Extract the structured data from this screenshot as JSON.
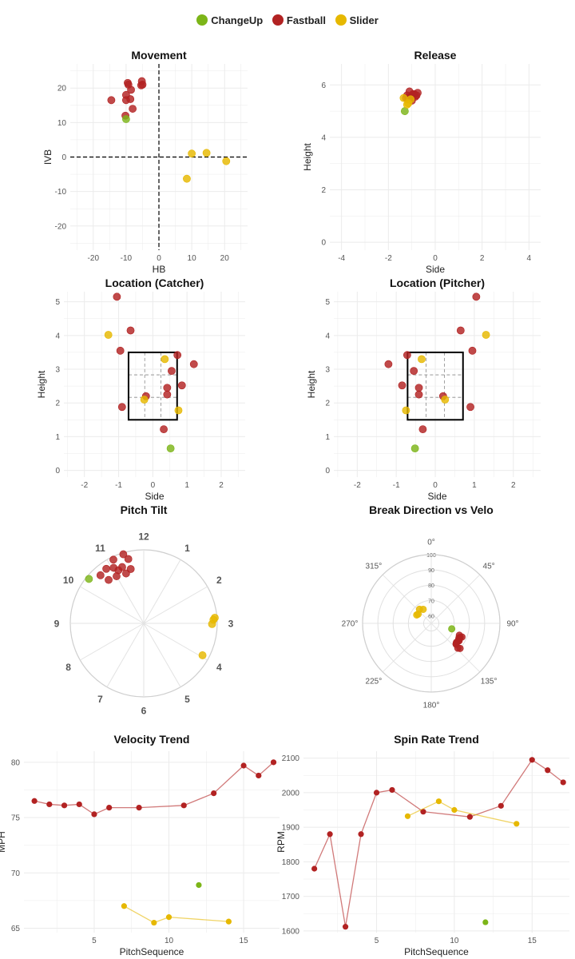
{
  "legend": {
    "items": [
      {
        "label": "ChangeUp",
        "color": "#7cb518"
      },
      {
        "label": "Fastball",
        "color": "#b22222"
      },
      {
        "label": "Slider",
        "color": "#e6b800"
      }
    ]
  },
  "chart_data": [
    {
      "type": "scatter",
      "title": "Movement",
      "xlabel": "HB",
      "ylabel": "IVB",
      "xlim": [
        -27,
        27
      ],
      "ylim": [
        -27,
        27
      ],
      "xticks": [
        -20,
        -10,
        0,
        10,
        20
      ],
      "yticks": [
        -20,
        -10,
        0,
        10,
        20
      ],
      "series": [
        {
          "name": "Fastball",
          "color": "#b22222",
          "points": [
            [
              -9.5,
              21.5
            ],
            [
              -9.3,
              21
            ],
            [
              -5.2,
              22
            ],
            [
              -5,
              21
            ],
            [
              -5.4,
              20.8
            ],
            [
              -8.5,
              19.5
            ],
            [
              -10,
              18
            ],
            [
              -10,
              16.5
            ],
            [
              -8.7,
              16.8
            ],
            [
              -14.5,
              16.5
            ],
            [
              -8,
              14
            ],
            [
              -10.2,
              12
            ]
          ]
        },
        {
          "name": "ChangeUp",
          "color": "#7cb518",
          "points": [
            [
              -10,
              11
            ]
          ]
        },
        {
          "name": "Slider",
          "color": "#e6b800",
          "points": [
            [
              10,
              1
            ],
            [
              14.5,
              1.2
            ],
            [
              20.5,
              -1.2
            ],
            [
              8.5,
              -6.3
            ]
          ]
        }
      ]
    },
    {
      "type": "scatter",
      "title": "Release",
      "xlabel": "Side",
      "ylabel": "Height",
      "xlim": [
        -4.5,
        4.5
      ],
      "ylim": [
        -0.3,
        6.8
      ],
      "xticks": [
        -4,
        -2,
        0,
        2,
        4
      ],
      "yticks": [
        0,
        2,
        4,
        6
      ],
      "series": [
        {
          "name": "Fastball",
          "color": "#b22222",
          "points": [
            [
              -1.1,
              5.75
            ],
            [
              -0.9,
              5.65
            ],
            [
              -0.75,
              5.7
            ],
            [
              -1,
              5.6
            ],
            [
              -0.85,
              5.55
            ],
            [
              -1.2,
              5.6
            ],
            [
              -1.05,
              5.5
            ],
            [
              -0.95,
              5.65
            ],
            [
              -1.15,
              5.45
            ],
            [
              -0.8,
              5.6
            ],
            [
              -1.25,
              5.5
            ],
            [
              -1,
              5.4
            ]
          ]
        },
        {
          "name": "ChangeUp",
          "color": "#7cb518",
          "points": [
            [
              -1.3,
              5
            ]
          ]
        },
        {
          "name": "Slider",
          "color": "#e6b800",
          "points": [
            [
              -1.35,
              5.5
            ],
            [
              -1.15,
              5.3
            ],
            [
              -1.05,
              5.45
            ],
            [
              -1.2,
              5.25
            ]
          ]
        }
      ]
    },
    {
      "type": "scatter",
      "title": "Location (Catcher)",
      "xlabel": "Side",
      "ylabel": "Height",
      "xlim": [
        -2.6,
        2.7
      ],
      "ylim": [
        -0.2,
        5.3
      ],
      "xticks": [
        -2,
        -1,
        0,
        1,
        2
      ],
      "yticks": [
        0,
        1,
        2,
        3,
        4,
        5
      ],
      "zone": {
        "x": [
          -0.71,
          0.71
        ],
        "y": [
          1.5,
          3.5
        ]
      },
      "series": [
        {
          "name": "Fastball",
          "color": "#b22222",
          "points": [
            [
              -1.05,
              5.15
            ],
            [
              -0.65,
              4.15
            ],
            [
              -0.95,
              3.55
            ],
            [
              0.72,
              3.42
            ],
            [
              1.2,
              3.15
            ],
            [
              0.55,
              2.95
            ],
            [
              0.85,
              2.52
            ],
            [
              0.42,
              2.45
            ],
            [
              -0.2,
              2.2
            ],
            [
              0.42,
              2.25
            ],
            [
              -0.9,
              1.88
            ],
            [
              0.32,
              1.22
            ]
          ]
        },
        {
          "name": "ChangeUp",
          "color": "#7cb518",
          "points": [
            [
              0.52,
              0.65
            ]
          ]
        },
        {
          "name": "Slider",
          "color": "#e6b800",
          "points": [
            [
              -1.3,
              4.02
            ],
            [
              0.35,
              3.3
            ],
            [
              -0.25,
              2.1
            ],
            [
              0.75,
              1.78
            ]
          ]
        }
      ]
    },
    {
      "type": "scatter",
      "title": "Location (Pitcher)",
      "xlabel": "Side",
      "ylabel": "Height",
      "xlim": [
        -2.6,
        2.7
      ],
      "ylim": [
        -0.2,
        5.3
      ],
      "xticks": [
        -2,
        -1,
        0,
        1,
        2
      ],
      "yticks": [
        0,
        1,
        2,
        3,
        4,
        5
      ],
      "zone": {
        "x": [
          -0.71,
          0.71
        ],
        "y": [
          1.5,
          3.5
        ]
      },
      "series": [
        {
          "name": "Fastball",
          "color": "#b22222",
          "points": [
            [
              1.05,
              5.15
            ],
            [
              0.65,
              4.15
            ],
            [
              0.95,
              3.55
            ],
            [
              -0.72,
              3.42
            ],
            [
              -1.2,
              3.15
            ],
            [
              -0.55,
              2.95
            ],
            [
              -0.85,
              2.52
            ],
            [
              -0.42,
              2.45
            ],
            [
              0.2,
              2.2
            ],
            [
              -0.42,
              2.25
            ],
            [
              0.9,
              1.88
            ],
            [
              -0.32,
              1.22
            ]
          ]
        },
        {
          "name": "ChangeUp",
          "color": "#7cb518",
          "points": [
            [
              -0.52,
              0.65
            ]
          ]
        },
        {
          "name": "Slider",
          "color": "#e6b800",
          "points": [
            [
              1.3,
              4.02
            ],
            [
              -0.35,
              3.3
            ],
            [
              0.25,
              2.1
            ],
            [
              -0.75,
              1.78
            ]
          ]
        }
      ]
    },
    {
      "type": "scatter",
      "title": "Pitch Tilt",
      "clock_labels": [
        "12",
        "1",
        "2",
        "3",
        "4",
        "5",
        "6",
        "7",
        "8",
        "9",
        "10",
        "11"
      ],
      "rlim": [
        0,
        1
      ],
      "series": [
        {
          "name": "Fastball",
          "color": "#b22222",
          "points": [
            {
              "clock": 11.15,
              "r": 0.96
            },
            {
              "clock": 11.45,
              "r": 0.98
            },
            {
              "clock": 11.55,
              "r": 0.9
            },
            {
              "clock": 11.05,
              "r": 0.86
            },
            {
              "clock": 11.3,
              "r": 0.82
            },
            {
              "clock": 11.55,
              "r": 0.76
            },
            {
              "clock": 11.35,
              "r": 0.72
            },
            {
              "clock": 11.15,
              "r": 0.8
            },
            {
              "clock": 10.6,
              "r": 0.88
            },
            {
              "clock": 10.7,
              "r": 0.76
            },
            {
              "clock": 11.0,
              "r": 0.74
            },
            {
              "clock": 10.85,
              "r": 0.9
            }
          ]
        },
        {
          "name": "ChangeUp",
          "color": "#7cb518",
          "points": [
            {
              "clock": 10.3,
              "r": 0.96
            }
          ]
        },
        {
          "name": "Slider",
          "color": "#e6b800",
          "points": [
            {
              "clock": 2.9,
              "r": 0.95
            },
            {
              "clock": 2.85,
              "r": 0.97
            },
            {
              "clock": 3.02,
              "r": 0.93
            },
            {
              "clock": 3.95,
              "r": 0.91
            }
          ]
        }
      ]
    },
    {
      "type": "scatter",
      "title": "Break Direction vs Velo",
      "angle_labels": [
        "0°",
        "45°",
        "90°",
        "135°",
        "180°",
        "225°",
        "270°",
        "315°"
      ],
      "rticks": [
        60,
        70,
        80,
        90,
        100
      ],
      "rlim": [
        55,
        100
      ],
      "series": [
        {
          "name": "Fastball",
          "color": "#b22222",
          "points": [
            {
              "deg": 113,
              "r": 75
            },
            {
              "deg": 114,
              "r": 77
            },
            {
              "deg": 116,
              "r": 76
            },
            {
              "deg": 118,
              "r": 75.5
            },
            {
              "deg": 120,
              "r": 76
            },
            {
              "deg": 122,
              "r": 76.5
            },
            {
              "deg": 124,
              "r": 76
            },
            {
              "deg": 127,
              "r": 75.7
            },
            {
              "deg": 129,
              "r": 76
            },
            {
              "deg": 130,
              "r": 76.3
            },
            {
              "deg": 131,
              "r": 80
            },
            {
              "deg": 133,
              "r": 78.8
            }
          ]
        },
        {
          "name": "ChangeUp",
          "color": "#7cb518",
          "points": [
            {
              "deg": 105,
              "r": 68.9
            }
          ]
        },
        {
          "name": "Slider",
          "color": "#e6b800",
          "points": [
            {
              "deg": 300,
              "r": 66
            },
            {
              "deg": 320,
              "r": 67
            },
            {
              "deg": 330,
              "r": 65.6
            },
            {
              "deg": 305,
              "r": 65.5
            }
          ]
        }
      ]
    },
    {
      "type": "line",
      "title": "Velocity Trend",
      "xlabel": "PitchSequence",
      "ylabel": "MPH",
      "xlim": [
        0.3,
        17.4
      ],
      "ylim": [
        64.6,
        81
      ],
      "xticks": [
        5,
        10,
        15
      ],
      "yticks": [
        65,
        70,
        75,
        80
      ],
      "series": [
        {
          "name": "Fastball",
          "color": "#b22222",
          "line": true,
          "points": [
            [
              1,
              76.5
            ],
            [
              2,
              76.2
            ],
            [
              3,
              76.1
            ],
            [
              4,
              76.2
            ],
            [
              5,
              75.3
            ],
            [
              6,
              75.9
            ],
            [
              8,
              75.9
            ],
            [
              11,
              76.1
            ],
            [
              13,
              77.2
            ],
            [
              15,
              79.7
            ],
            [
              16,
              78.8
            ],
            [
              17,
              80
            ]
          ]
        },
        {
          "name": "Slider",
          "color": "#e6b800",
          "line": true,
          "points": [
            [
              7,
              67
            ],
            [
              9,
              65.5
            ],
            [
              10,
              66
            ],
            [
              14,
              65.6
            ]
          ]
        },
        {
          "name": "ChangeUp",
          "color": "#7cb518",
          "line": false,
          "points": [
            [
              12,
              68.9
            ]
          ]
        }
      ]
    },
    {
      "type": "line",
      "title": "Spin Rate Trend",
      "xlabel": "PitchSequence",
      "ylabel": "RPM",
      "xlim": [
        0.3,
        17.4
      ],
      "ylim": [
        1595,
        2120
      ],
      "xticks": [
        5,
        10,
        15
      ],
      "yticks": [
        1600,
        1700,
        1800,
        1900,
        2000,
        2100
      ],
      "series": [
        {
          "name": "Fastball",
          "color": "#b22222",
          "line": true,
          "points": [
            [
              1,
              1780
            ],
            [
              2,
              1880
            ],
            [
              3,
              1612
            ],
            [
              4,
              1880
            ],
            [
              5,
              2000
            ],
            [
              6,
              2008
            ],
            [
              8,
              1945
            ],
            [
              11,
              1930
            ],
            [
              13,
              1962
            ],
            [
              15,
              2095
            ],
            [
              16,
              2065
            ],
            [
              17,
              2030
            ]
          ]
        },
        {
          "name": "Slider",
          "color": "#e6b800",
          "line": true,
          "points": [
            [
              7,
              1932
            ],
            [
              9,
              1975
            ],
            [
              10,
              1950
            ],
            [
              14,
              1910
            ]
          ]
        },
        {
          "name": "ChangeUp",
          "color": "#7cb518",
          "line": false,
          "points": [
            [
              12,
              1625
            ]
          ]
        }
      ]
    }
  ]
}
